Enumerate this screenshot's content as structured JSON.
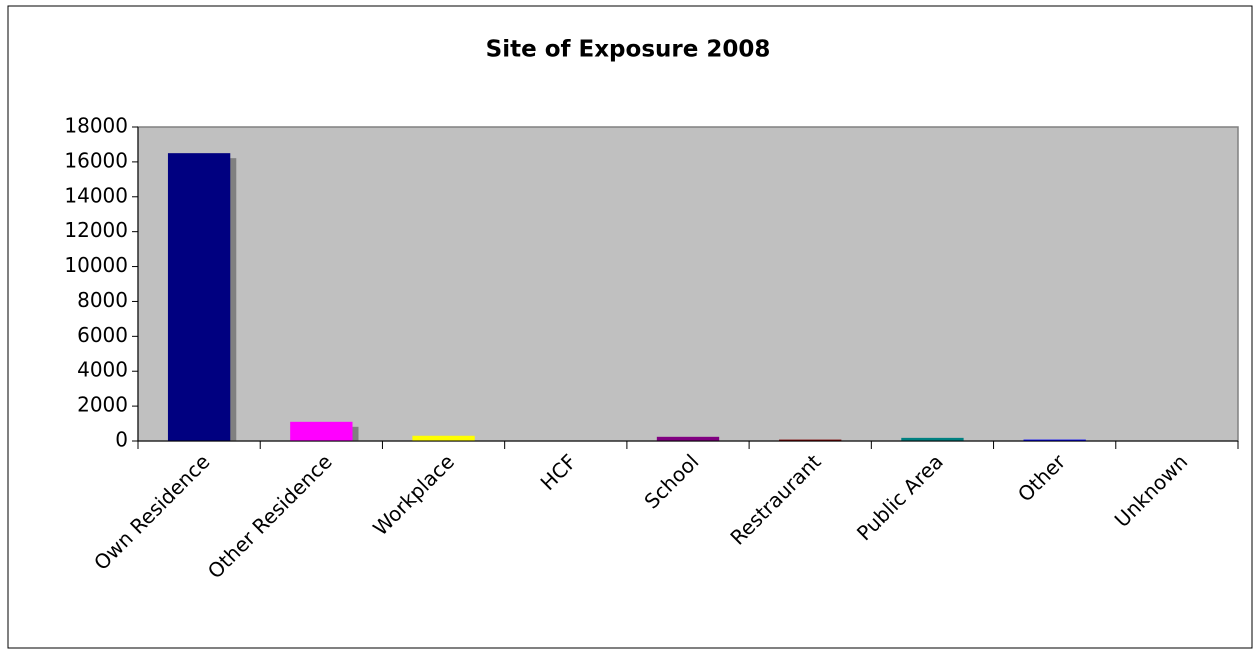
{
  "chart_data": {
    "type": "bar",
    "title": "Site of Exposure 2008",
    "categories": [
      "Own Residence",
      "Other Residence",
      "Workplace",
      "HCF",
      "School",
      "Restraurant",
      "Public Area",
      "Other",
      "Unknown"
    ],
    "values": [
      16500,
      1100,
      300,
      20,
      240,
      80,
      180,
      80,
      10
    ],
    "colors": [
      "#000080",
      "#ff00ff",
      "#ffff00",
      "#00ffff",
      "#800080",
      "#800000",
      "#008080",
      "#0000ff",
      "#c0c0c0"
    ],
    "ylim": [
      0,
      18000
    ],
    "yticks": [
      0,
      2000,
      4000,
      6000,
      8000,
      10000,
      12000,
      14000,
      16000,
      18000
    ],
    "grid": false
  }
}
